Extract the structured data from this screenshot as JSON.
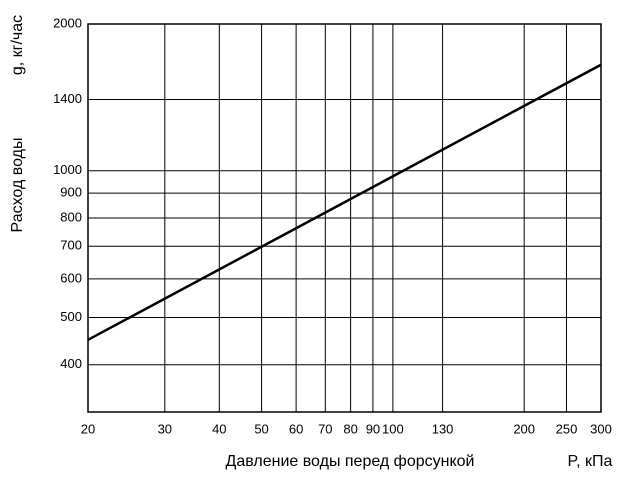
{
  "chart_data": {
    "type": "line",
    "x_label": "Давление воды перед форсункой",
    "x_unit_label": "P, кПа",
    "y_label": "Расход воды",
    "y_unit_label": "g, кг/час",
    "xscale": "log",
    "yscale": "log",
    "grid": true,
    "xlim": [
      20,
      300
    ],
    "xticks": [
      20,
      30,
      40,
      50,
      60,
      70,
      80,
      90,
      100,
      130,
      200,
      250,
      300
    ],
    "ylim": [
      320,
      2000
    ],
    "yticks": [
      400,
      500,
      600,
      700,
      800,
      900,
      1000,
      1400,
      2000
    ],
    "x": [
      20,
      300
    ],
    "series": [
      {
        "color": "#000000",
        "values": [
          450,
          1650
        ]
      }
    ]
  }
}
